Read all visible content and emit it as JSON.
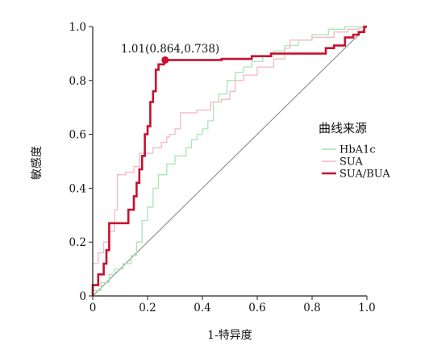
{
  "chart_data": {
    "type": "line",
    "title": "",
    "xlabel": "1-特异度",
    "ylabel": "敏感度",
    "xlim": [
      0,
      1
    ],
    "ylim": [
      0,
      1
    ],
    "x_ticks": [
      "0",
      "0.2",
      "0.4",
      "0.6",
      "0.8",
      "1.0"
    ],
    "y_ticks": [
      "0",
      "0.2",
      "0.4",
      "0.6",
      "0.8",
      "1.0"
    ],
    "grid": false,
    "legend": {
      "title": "曲线来源",
      "position": "right",
      "entries": [
        "HbA1c",
        "SUA",
        "SUA/BUA"
      ]
    },
    "annotation": {
      "text": "1.01(0.864,0.738)",
      "x": 0.264,
      "y": 0.876
    },
    "reference_line": {
      "from": [
        0,
        0
      ],
      "to": [
        1,
        1
      ],
      "color": "#7f7f7f"
    },
    "series": [
      {
        "name": "HbA1c",
        "color": "#a8e6b4",
        "points": [
          [
            0,
            0
          ],
          [
            0,
            0.02
          ],
          [
            0.03,
            0.02
          ],
          [
            0.03,
            0.05
          ],
          [
            0.06,
            0.05
          ],
          [
            0.06,
            0.08
          ],
          [
            0.08,
            0.08
          ],
          [
            0.08,
            0.1
          ],
          [
            0.11,
            0.1
          ],
          [
            0.11,
            0.12
          ],
          [
            0.14,
            0.12
          ],
          [
            0.14,
            0.15
          ],
          [
            0.16,
            0.15
          ],
          [
            0.16,
            0.2
          ],
          [
            0.18,
            0.2
          ],
          [
            0.18,
            0.28
          ],
          [
            0.2,
            0.28
          ],
          [
            0.2,
            0.33
          ],
          [
            0.22,
            0.33
          ],
          [
            0.22,
            0.4
          ],
          [
            0.24,
            0.4
          ],
          [
            0.24,
            0.45
          ],
          [
            0.27,
            0.45
          ],
          [
            0.27,
            0.49
          ],
          [
            0.3,
            0.49
          ],
          [
            0.3,
            0.52
          ],
          [
            0.34,
            0.52
          ],
          [
            0.34,
            0.55
          ],
          [
            0.36,
            0.55
          ],
          [
            0.36,
            0.58
          ],
          [
            0.38,
            0.58
          ],
          [
            0.38,
            0.6
          ],
          [
            0.4,
            0.6
          ],
          [
            0.4,
            0.62
          ],
          [
            0.42,
            0.62
          ],
          [
            0.42,
            0.65
          ],
          [
            0.44,
            0.65
          ],
          [
            0.44,
            0.72
          ],
          [
            0.46,
            0.72
          ],
          [
            0.46,
            0.75
          ],
          [
            0.49,
            0.75
          ],
          [
            0.49,
            0.8
          ],
          [
            0.52,
            0.8
          ],
          [
            0.52,
            0.83
          ],
          [
            0.55,
            0.83
          ],
          [
            0.55,
            0.85
          ],
          [
            0.58,
            0.85
          ],
          [
            0.58,
            0.87
          ],
          [
            0.62,
            0.87
          ],
          [
            0.62,
            0.89
          ],
          [
            0.66,
            0.89
          ],
          [
            0.66,
            0.91
          ],
          [
            0.7,
            0.91
          ],
          [
            0.7,
            0.93
          ],
          [
            0.75,
            0.93
          ],
          [
            0.75,
            0.95
          ],
          [
            0.8,
            0.95
          ],
          [
            0.8,
            0.97
          ],
          [
            0.86,
            0.97
          ],
          [
            0.86,
            0.99
          ],
          [
            0.92,
            0.99
          ],
          [
            0.92,
            1.0
          ],
          [
            1,
            1
          ]
        ]
      },
      {
        "name": "SUA",
        "color": "#f2b8c6",
        "points": [
          [
            0,
            0
          ],
          [
            0,
            0.12
          ],
          [
            0.02,
            0.12
          ],
          [
            0.02,
            0.16
          ],
          [
            0.04,
            0.16
          ],
          [
            0.04,
            0.2
          ],
          [
            0.06,
            0.2
          ],
          [
            0.06,
            0.24
          ],
          [
            0.08,
            0.24
          ],
          [
            0.08,
            0.32
          ],
          [
            0.09,
            0.32
          ],
          [
            0.09,
            0.45
          ],
          [
            0.12,
            0.45
          ],
          [
            0.12,
            0.46
          ],
          [
            0.15,
            0.46
          ],
          [
            0.15,
            0.48
          ],
          [
            0.17,
            0.48
          ],
          [
            0.17,
            0.53
          ],
          [
            0.22,
            0.53
          ],
          [
            0.22,
            0.55
          ],
          [
            0.25,
            0.55
          ],
          [
            0.25,
            0.57
          ],
          [
            0.27,
            0.57
          ],
          [
            0.27,
            0.59
          ],
          [
            0.28,
            0.59
          ],
          [
            0.28,
            0.6
          ],
          [
            0.3,
            0.6
          ],
          [
            0.3,
            0.62
          ],
          [
            0.32,
            0.62
          ],
          [
            0.32,
            0.68
          ],
          [
            0.38,
            0.68
          ],
          [
            0.38,
            0.69
          ],
          [
            0.43,
            0.69
          ],
          [
            0.43,
            0.72
          ],
          [
            0.47,
            0.72
          ],
          [
            0.47,
            0.73
          ],
          [
            0.5,
            0.73
          ],
          [
            0.5,
            0.76
          ],
          [
            0.52,
            0.76
          ],
          [
            0.52,
            0.8
          ],
          [
            0.55,
            0.8
          ],
          [
            0.55,
            0.82
          ],
          [
            0.6,
            0.82
          ],
          [
            0.6,
            0.85
          ],
          [
            0.66,
            0.85
          ],
          [
            0.66,
            0.88
          ],
          [
            0.7,
            0.88
          ],
          [
            0.7,
            0.92
          ],
          [
            0.72,
            0.92
          ],
          [
            0.72,
            0.95
          ],
          [
            0.8,
            0.95
          ],
          [
            0.8,
            0.96
          ],
          [
            0.88,
            0.96
          ],
          [
            0.88,
            0.98
          ],
          [
            0.93,
            0.98
          ],
          [
            0.93,
            0.99
          ],
          [
            0.96,
            0.99
          ],
          [
            1,
            1
          ]
        ]
      },
      {
        "name": "SUA/BUA",
        "color": "#c8102e",
        "points": [
          [
            0,
            0
          ],
          [
            0,
            0.04
          ],
          [
            0.02,
            0.04
          ],
          [
            0.02,
            0.08
          ],
          [
            0.04,
            0.08
          ],
          [
            0.04,
            0.12
          ],
          [
            0.05,
            0.12
          ],
          [
            0.05,
            0.17
          ],
          [
            0.06,
            0.17
          ],
          [
            0.06,
            0.27
          ],
          [
            0.13,
            0.27
          ],
          [
            0.13,
            0.32
          ],
          [
            0.15,
            0.32
          ],
          [
            0.15,
            0.37
          ],
          [
            0.16,
            0.37
          ],
          [
            0.16,
            0.42
          ],
          [
            0.17,
            0.42
          ],
          [
            0.17,
            0.47
          ],
          [
            0.18,
            0.47
          ],
          [
            0.18,
            0.52
          ],
          [
            0.19,
            0.52
          ],
          [
            0.19,
            0.6
          ],
          [
            0.2,
            0.6
          ],
          [
            0.2,
            0.63
          ],
          [
            0.21,
            0.63
          ],
          [
            0.21,
            0.72
          ],
          [
            0.22,
            0.72
          ],
          [
            0.22,
            0.76
          ],
          [
            0.23,
            0.76
          ],
          [
            0.23,
            0.84
          ],
          [
            0.24,
            0.84
          ],
          [
            0.24,
            0.86
          ],
          [
            0.26,
            0.86
          ],
          [
            0.26,
            0.876
          ],
          [
            0.27,
            0.876
          ],
          [
            0.45,
            0.876
          ],
          [
            0.47,
            0.876
          ],
          [
            0.47,
            0.88
          ],
          [
            0.58,
            0.88
          ],
          [
            0.58,
            0.89
          ],
          [
            0.65,
            0.89
          ],
          [
            0.65,
            0.9
          ],
          [
            0.85,
            0.9
          ],
          [
            0.85,
            0.92
          ],
          [
            0.88,
            0.92
          ],
          [
            0.88,
            0.93
          ],
          [
            0.92,
            0.93
          ],
          [
            0.92,
            0.96
          ],
          [
            0.95,
            0.96
          ],
          [
            0.95,
            0.97
          ],
          [
            0.97,
            0.97
          ],
          [
            0.97,
            0.98
          ],
          [
            0.99,
            0.98
          ],
          [
            0.99,
            1.0
          ],
          [
            1,
            1
          ]
        ]
      }
    ]
  }
}
